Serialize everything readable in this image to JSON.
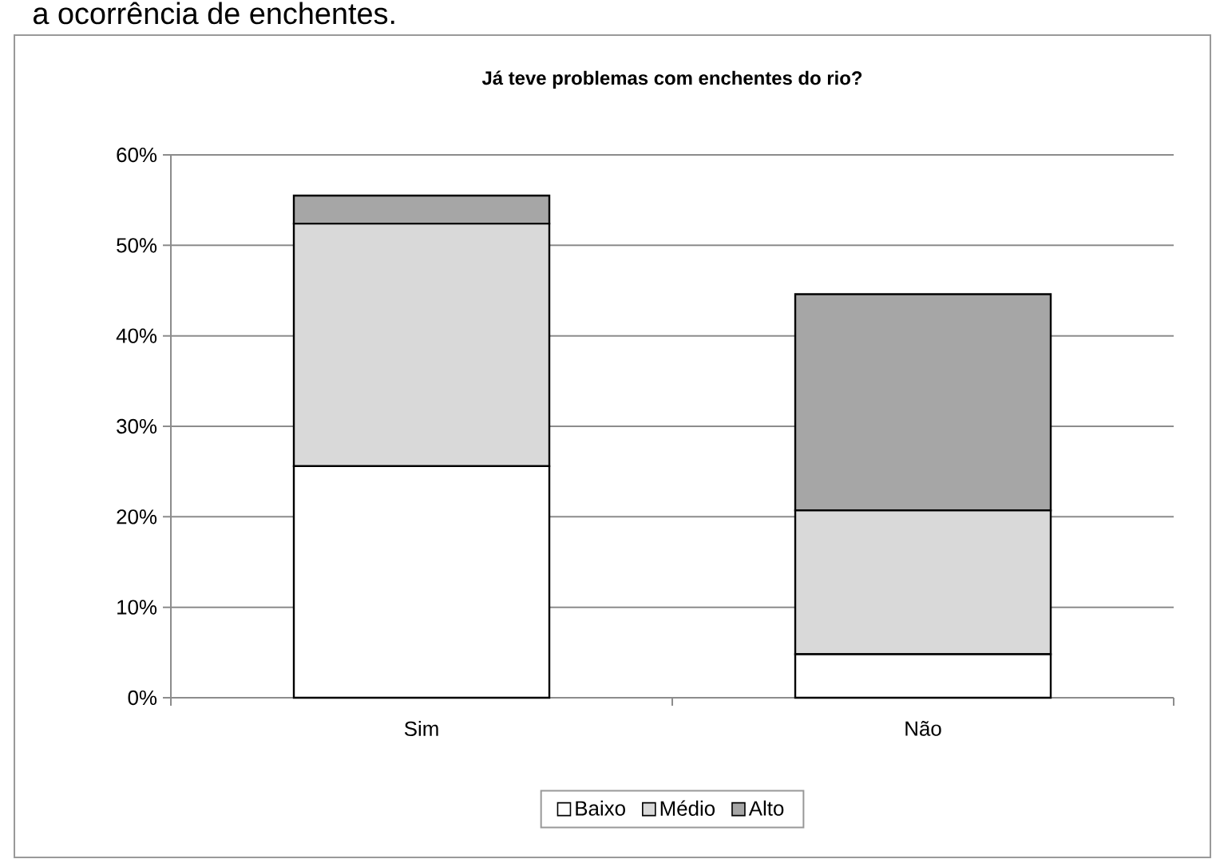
{
  "chart_data": {
    "type": "bar",
    "stacked": true,
    "title": "Já teve problemas com enchentes do rio?",
    "annotations": [
      "a ocorrência de enchentes."
    ],
    "categories": [
      "Sim",
      "Não"
    ],
    "series": [
      {
        "name": "Baixo",
        "color": "#ffffff",
        "values": [
          25.6,
          4.8
        ]
      },
      {
        "name": "Médio",
        "color": "#d9d9d9",
        "values": [
          26.8,
          15.9
        ]
      },
      {
        "name": "Alto",
        "color": "#a6a6a6",
        "values": [
          3.1,
          23.9
        ]
      }
    ],
    "ylim": [
      0,
      60
    ],
    "yticks": [
      {
        "value": 0,
        "label": "0%"
      },
      {
        "value": 10,
        "label": "10%"
      },
      {
        "value": 20,
        "label": "20%"
      },
      {
        "value": 30,
        "label": "30%"
      },
      {
        "value": 40,
        "label": "40%"
      },
      {
        "value": 50,
        "label": "50%"
      },
      {
        "value": 60,
        "label": "60%"
      }
    ],
    "grid": "y",
    "legend": "bottom"
  }
}
